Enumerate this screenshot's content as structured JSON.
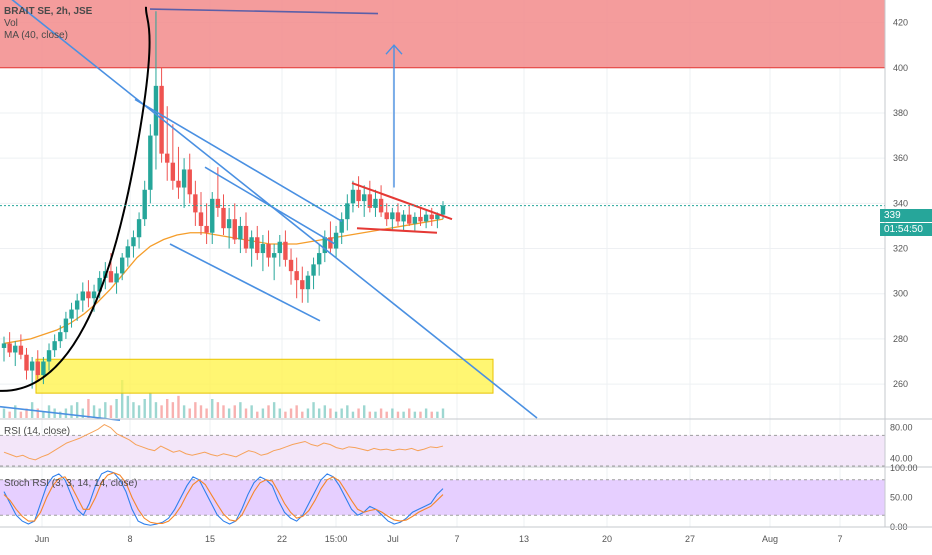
{
  "header": {
    "symbol_line": "BRAIT SE, 2h, JSE",
    "vol_label": "Vol",
    "ma_label": "MA (40, close)"
  },
  "panes": {
    "rsi_label": "RSI (14, close)",
    "stoch_label": "Stoch RSI (3, 3, 14, 14, close)"
  },
  "badges": {
    "last_price": "339",
    "countdown": "01:54:50",
    "last_color": "#26a69a",
    "countdown_color": "#26a69a"
  },
  "colors": {
    "up": "#26a69a",
    "down": "#ef5350",
    "trendline": "#4a90e2",
    "ma": "#f59d2a",
    "resistance_zone": "#f28b8b",
    "support_zone": "#fff44f",
    "rsi_line": "#f6a25a",
    "rsi_band": "#f3e6f9",
    "stoch_k": "#2f80ed",
    "stoch_d": "#f5862a",
    "stoch_band": "#e6cfff"
  },
  "chart_data": [
    {
      "type": "candlestick",
      "title": "BRAIT SE, 2h, JSE",
      "ylim": [
        245,
        430
      ],
      "y_ticks": [
        "420",
        "400",
        "380",
        "360",
        "340",
        "320",
        "300",
        "280",
        "260"
      ],
      "x_ticks": [
        "Jun",
        "8",
        "15",
        "22",
        "15:00",
        "Jul",
        "7",
        "13",
        "20",
        "27",
        "Aug",
        "7"
      ],
      "last_price": 339,
      "candles_ohlc": [
        [
          276,
          281,
          270,
          278
        ],
        [
          278,
          283,
          272,
          274
        ],
        [
          274,
          279,
          268,
          277
        ],
        [
          277,
          282,
          271,
          273
        ],
        [
          273,
          276,
          262,
          266
        ],
        [
          266,
          272,
          258,
          270
        ],
        [
          270,
          275,
          262,
          264
        ],
        [
          264,
          272,
          260,
          270
        ],
        [
          270,
          278,
          266,
          275
        ],
        [
          275,
          282,
          272,
          279
        ],
        [
          279,
          286,
          276,
          283
        ],
        [
          283,
          292,
          280,
          289
        ],
        [
          289,
          296,
          285,
          293
        ],
        [
          293,
          300,
          288,
          297
        ],
        [
          297,
          305,
          292,
          301
        ],
        [
          301,
          306,
          294,
          298
        ],
        [
          298,
          304,
          292,
          301
        ],
        [
          301,
          310,
          298,
          307
        ],
        [
          307,
          314,
          302,
          310
        ],
        [
          310,
          318,
          305,
          305
        ],
        [
          305,
          312,
          300,
          309
        ],
        [
          309,
          318,
          306,
          316
        ],
        [
          316,
          324,
          312,
          321
        ],
        [
          321,
          328,
          316,
          325
        ],
        [
          325,
          336,
          320,
          333
        ],
        [
          333,
          350,
          330,
          346
        ],
        [
          346,
          375,
          340,
          370
        ],
        [
          370,
          425,
          355,
          392
        ],
        [
          392,
          400,
          358,
          362
        ],
        [
          362,
          383,
          350,
          358
        ],
        [
          358,
          375,
          346,
          350
        ],
        [
          350,
          365,
          342,
          347
        ],
        [
          347,
          360,
          338,
          355
        ],
        [
          355,
          362,
          340,
          344
        ],
        [
          344,
          350,
          330,
          336
        ],
        [
          336,
          345,
          326,
          330
        ],
        [
          330,
          340,
          322,
          327
        ],
        [
          327,
          345,
          322,
          342
        ],
        [
          342,
          356,
          334,
          338
        ],
        [
          338,
          344,
          326,
          329
        ],
        [
          329,
          338,
          320,
          333
        ],
        [
          333,
          340,
          322,
          324
        ],
        [
          324,
          334,
          318,
          330
        ],
        [
          330,
          336,
          318,
          320
        ],
        [
          320,
          328,
          312,
          325
        ],
        [
          325,
          330,
          315,
          318
        ],
        [
          318,
          326,
          310,
          322
        ],
        [
          322,
          328,
          312,
          316
        ],
        [
          316,
          322,
          306,
          318
        ],
        [
          318,
          326,
          312,
          323
        ],
        [
          323,
          328,
          312,
          315
        ],
        [
          315,
          320,
          304,
          310
        ],
        [
          310,
          316,
          298,
          306
        ],
        [
          306,
          312,
          296,
          302
        ],
        [
          302,
          310,
          296,
          308
        ],
        [
          308,
          316,
          302,
          313
        ],
        [
          313,
          322,
          308,
          318
        ],
        [
          318,
          328,
          314,
          325
        ],
        [
          325,
          332,
          318,
          320
        ],
        [
          320,
          330,
          316,
          327
        ],
        [
          327,
          336,
          322,
          333
        ],
        [
          333,
          344,
          328,
          340
        ],
        [
          340,
          350,
          336,
          346
        ],
        [
          346,
          352,
          338,
          341
        ],
        [
          341,
          348,
          334,
          344
        ],
        [
          344,
          350,
          336,
          338
        ],
        [
          338,
          346,
          334,
          342
        ],
        [
          342,
          348,
          334,
          336
        ],
        [
          336,
          340,
          330,
          333
        ],
        [
          333,
          338,
          328,
          336
        ],
        [
          336,
          340,
          330,
          332
        ],
        [
          332,
          337,
          328,
          335
        ],
        [
          335,
          339,
          330,
          331
        ],
        [
          331,
          336,
          328,
          334
        ],
        [
          334,
          338,
          330,
          332
        ],
        [
          332,
          337,
          329,
          335
        ],
        [
          335,
          338,
          330,
          333
        ],
        [
          333,
          336,
          329,
          335
        ],
        [
          335,
          341,
          333,
          339
        ]
      ],
      "moving_average_40": [
        278,
        279,
        280,
        282,
        284,
        287,
        291,
        296,
        302,
        309,
        316,
        321,
        324,
        326,
        327,
        327,
        326,
        325,
        324,
        323,
        322,
        322,
        322,
        323,
        324,
        325,
        326,
        327,
        328,
        329,
        330,
        331,
        332,
        333
      ],
      "resistance_zone": [
        400,
        430
      ],
      "support_zone": [
        256,
        271
      ],
      "projection_target": 400
    },
    {
      "type": "bar",
      "title": "Vol",
      "values": [
        3,
        2,
        4,
        2,
        3,
        5,
        3,
        2,
        4,
        3,
        2,
        3,
        4,
        5,
        3,
        6,
        4,
        3,
        5,
        4,
        6,
        12,
        7,
        5,
        4,
        6,
        8,
        5,
        4,
        6,
        5,
        7,
        4,
        3,
        5,
        4,
        3,
        6,
        5,
        4,
        3,
        4,
        5,
        3,
        4,
        2,
        3,
        4,
        5,
        3,
        2,
        3,
        4,
        2,
        3,
        5,
        3,
        4,
        3,
        2,
        3,
        4,
        2,
        3,
        4,
        2,
        2,
        3,
        2,
        3,
        2,
        2,
        3,
        2,
        2,
        3,
        2,
        2,
        3
      ]
    },
    {
      "type": "line",
      "title": "RSI (14, close)",
      "ylim": [
        30,
        90
      ],
      "y_ticks": [
        "80.00",
        "40.00"
      ],
      "band": [
        30,
        70
      ],
      "values": [
        48,
        45,
        42,
        44,
        40,
        38,
        42,
        45,
        50,
        55,
        60,
        63,
        66,
        70,
        74,
        78,
        84,
        80,
        72,
        68,
        64,
        58,
        55,
        52,
        50,
        56,
        52,
        48,
        50,
        46,
        44,
        46,
        48,
        45,
        43,
        46,
        44,
        42,
        46,
        50,
        48,
        44,
        46,
        50,
        52,
        55,
        58,
        60,
        62,
        58,
        56,
        60,
        58,
        54,
        52,
        55,
        54,
        52,
        50,
        53,
        51,
        52,
        50,
        52,
        51,
        53,
        50,
        52,
        55,
        54,
        56
      ]
    },
    {
      "type": "line",
      "title": "Stoch RSI (3, 3, 14, 14, close)",
      "ylim": [
        0,
        100
      ],
      "y_ticks": [
        "100.00",
        "50.00",
        "0.00"
      ],
      "band": [
        20,
        80
      ],
      "series": [
        {
          "values": [
            60,
            40,
            20,
            10,
            5,
            10,
            40,
            70,
            85,
            90,
            80,
            55,
            30,
            20,
            40,
            70,
            90,
            95,
            92,
            80,
            60,
            30,
            10,
            5,
            3,
            5,
            8,
            15,
            30,
            50,
            70,
            85,
            80,
            60,
            40,
            20,
            10,
            5,
            10,
            30,
            55,
            75,
            85,
            80,
            70,
            45,
            25,
            15,
            10,
            20,
            40,
            60,
            80,
            90,
            85,
            70,
            50,
            30,
            20,
            25,
            35,
            30,
            20,
            10,
            5,
            8,
            15,
            25,
            30,
            35,
            40,
            55,
            65
          ]
        },
        {
          "values": [
            55,
            45,
            30,
            18,
            10,
            10,
            25,
            50,
            70,
            82,
            85,
            70,
            50,
            30,
            30,
            50,
            75,
            88,
            92,
            88,
            75,
            50,
            30,
            15,
            8,
            6,
            6,
            10,
            20,
            35,
            55,
            72,
            80,
            72,
            55,
            38,
            22,
            12,
            10,
            20,
            40,
            60,
            75,
            80,
            78,
            60,
            40,
            25,
            15,
            18,
            28,
            45,
            65,
            80,
            85,
            78,
            62,
            45,
            30,
            25,
            28,
            30,
            25,
            18,
            12,
            10,
            12,
            18,
            25,
            30,
            35,
            45,
            55
          ]
        }
      ]
    }
  ]
}
